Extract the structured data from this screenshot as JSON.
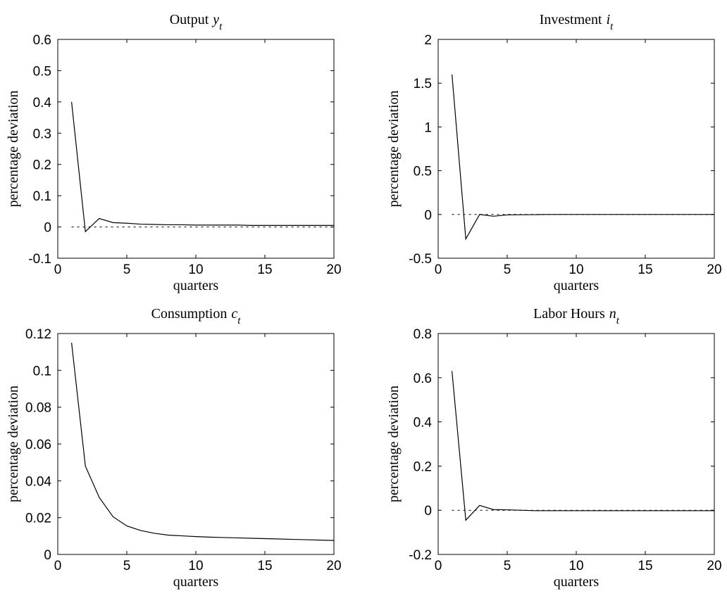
{
  "chart_data": [
    {
      "type": "line",
      "title": "Output",
      "title_symbol": "y",
      "title_subscript": "t",
      "xlabel": "quarters",
      "ylabel": "percentage deviation",
      "xlim": [
        0,
        20
      ],
      "ylim": [
        -0.1,
        0.6
      ],
      "xticks": [
        "0",
        "5",
        "10",
        "15",
        "20"
      ],
      "xtick_values": [
        0,
        5,
        10,
        15,
        20
      ],
      "yticks": [
        "-0.1",
        "0",
        "0.1",
        "0.2",
        "0.3",
        "0.4",
        "0.5",
        "0.6"
      ],
      "ytick_values": [
        -0.1,
        0,
        0.1,
        0.2,
        0.3,
        0.4,
        0.5,
        0.6
      ],
      "grid": false,
      "x": [
        1,
        2,
        3,
        4,
        5,
        6,
        7,
        8,
        9,
        10,
        11,
        12,
        13,
        14,
        15,
        16,
        17,
        18,
        19,
        20
      ],
      "values": [
        0.4,
        -0.015,
        0.027,
        0.014,
        0.012,
        0.009,
        0.008,
        0.007,
        0.007,
        0.006,
        0.006,
        0.006,
        0.006,
        0.005,
        0.005,
        0.005,
        0.005,
        0.005,
        0.005,
        0.005
      ],
      "reference_line": 0
    },
    {
      "type": "line",
      "title": "Investment",
      "title_symbol": "i",
      "title_subscript": "t",
      "xlabel": "quarters",
      "ylabel": "percentage deviation",
      "xlim": [
        0,
        20
      ],
      "ylim": [
        -0.5,
        2
      ],
      "xticks": [
        "0",
        "5",
        "10",
        "15",
        "20"
      ],
      "xtick_values": [
        0,
        5,
        10,
        15,
        20
      ],
      "yticks": [
        "-0.5",
        "0",
        "0.5",
        "1",
        "1.5",
        "2"
      ],
      "ytick_values": [
        -0.5,
        0,
        0.5,
        1,
        1.5,
        2
      ],
      "grid": false,
      "x": [
        1,
        2,
        3,
        4,
        5,
        6,
        7,
        8,
        9,
        10,
        11,
        12,
        13,
        14,
        15,
        16,
        17,
        18,
        19,
        20
      ],
      "values": [
        1.6,
        -0.28,
        0.0,
        -0.02,
        -0.005,
        -0.003,
        -0.002,
        0.0,
        0.0,
        0.0,
        0.0,
        0.0,
        0.0,
        0.0,
        0.0,
        0.0,
        0.0,
        0.0,
        0.0,
        0.0
      ],
      "reference_line": 0
    },
    {
      "type": "line",
      "title": "Consumption",
      "title_symbol": "c",
      "title_subscript": "t",
      "xlabel": "quarters",
      "ylabel": "percentage deviation",
      "xlim": [
        0,
        20
      ],
      "ylim": [
        0,
        0.12
      ],
      "xticks": [
        "0",
        "5",
        "10",
        "15",
        "20"
      ],
      "xtick_values": [
        0,
        5,
        10,
        15,
        20
      ],
      "yticks": [
        "0",
        "0.02",
        "0.04",
        "0.06",
        "0.08",
        "0.1",
        "0.12"
      ],
      "ytick_values": [
        0,
        0.02,
        0.04,
        0.06,
        0.08,
        0.1,
        0.12
      ],
      "grid": false,
      "x": [
        1,
        2,
        3,
        4,
        5,
        6,
        7,
        8,
        9,
        10,
        11,
        12,
        13,
        14,
        15,
        16,
        17,
        18,
        19,
        20
      ],
      "values": [
        0.115,
        0.048,
        0.031,
        0.0205,
        0.0155,
        0.013,
        0.0115,
        0.0105,
        0.0101,
        0.0097,
        0.0094,
        0.0092,
        0.009,
        0.0088,
        0.0086,
        0.0084,
        0.0082,
        0.008,
        0.0078,
        0.0076
      ]
    },
    {
      "type": "line",
      "title": "Labor Hours",
      "title_symbol": "n",
      "title_subscript": "t",
      "xlabel": "quarters",
      "ylabel": "percentage deviation",
      "xlim": [
        0,
        20
      ],
      "ylim": [
        -0.2,
        0.8
      ],
      "xticks": [
        "0",
        "5",
        "10",
        "15",
        "20"
      ],
      "xtick_values": [
        0,
        5,
        10,
        15,
        20
      ],
      "yticks": [
        "-0.2",
        "0",
        "0.2",
        "0.4",
        "0.6",
        "0.8"
      ],
      "ytick_values": [
        -0.2,
        0,
        0.2,
        0.4,
        0.6,
        0.8
      ],
      "grid": false,
      "x": [
        1,
        2,
        3,
        4,
        5,
        6,
        7,
        8,
        9,
        10,
        11,
        12,
        13,
        14,
        15,
        16,
        17,
        18,
        19,
        20
      ],
      "values": [
        0.63,
        -0.045,
        0.022,
        0.003,
        0.002,
        0.0,
        -0.002,
        -0.002,
        -0.002,
        -0.002,
        -0.002,
        -0.002,
        -0.002,
        -0.002,
        -0.002,
        -0.002,
        -0.002,
        -0.002,
        -0.002,
        -0.002
      ],
      "reference_line": 0
    }
  ]
}
